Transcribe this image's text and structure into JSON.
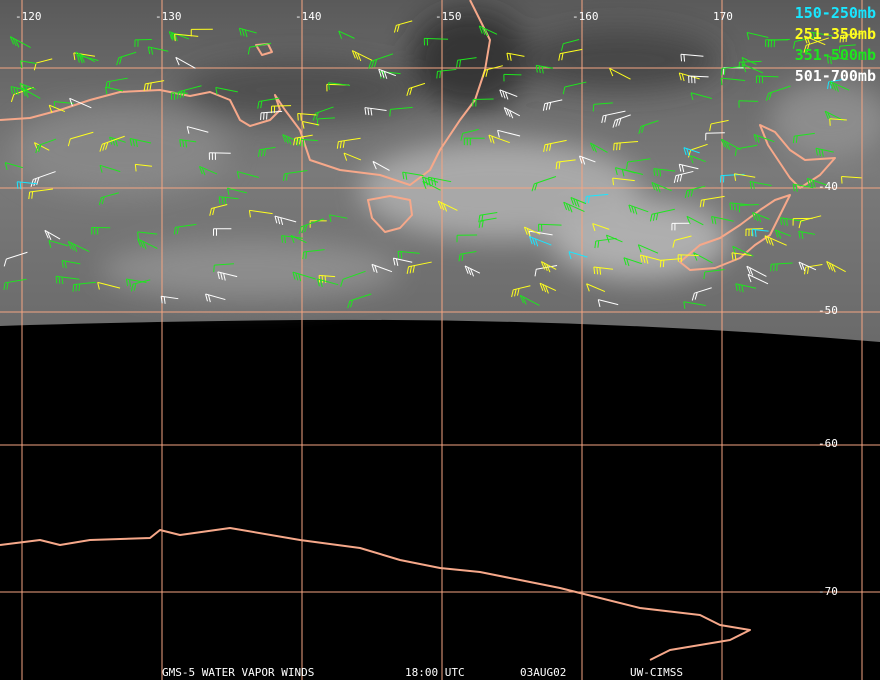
{
  "map": {
    "longitude_labels": [
      "-120",
      "-130",
      "-140",
      "-150",
      "-160",
      "170"
    ],
    "latitude_labels": [
      "-40",
      "-50",
      "-60",
      "-70"
    ],
    "legend": [
      {
        "label": "150-250mb",
        "color": "#19e6ff"
      },
      {
        "label": "251-350mb",
        "color": "#ffff1e"
      },
      {
        "label": "351-500mb",
        "color": "#1ee61e"
      },
      {
        "label": "501-700mb",
        "color": "#ffffff"
      }
    ],
    "footer": [
      "GMS-5 WATER VAPOR WINDS",
      "18:00 UTC",
      "03AUG02",
      "UW-CIMSS"
    ]
  }
}
